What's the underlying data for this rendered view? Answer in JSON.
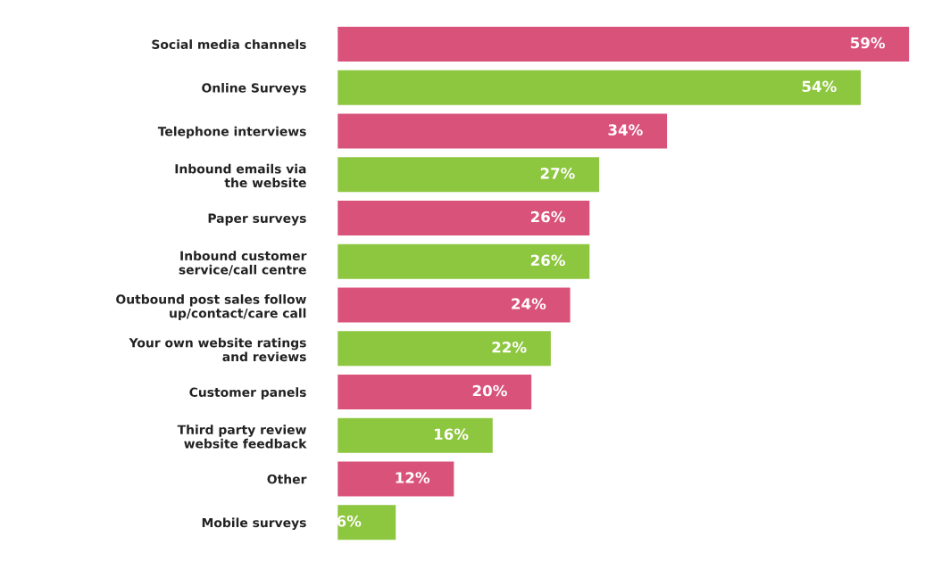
{
  "chart_data": {
    "type": "bar",
    "orientation": "horizontal",
    "categories": [
      "Social media channels",
      "Online Surveys",
      "Telephone interviews",
      "Inbound emails via\nthe website",
      "Paper surveys",
      "Inbound customer\nservice/call centre",
      "Outbound post sales follow\nup/contact/care call",
      "Your own website ratings\nand reviews",
      "Customer panels",
      "Third party review\nwebsite feedback",
      "Other",
      "Mobile surveys"
    ],
    "values": [
      59,
      54,
      34,
      27,
      26,
      26,
      24,
      22,
      20,
      16,
      12,
      6
    ],
    "colors": [
      "#d9527a",
      "#8dc63f",
      "#d9527a",
      "#8dc63f",
      "#d9527a",
      "#8dc63f",
      "#d9527a",
      "#8dc63f",
      "#d9527a",
      "#8dc63f",
      "#d9527a",
      "#8dc63f"
    ],
    "value_labels": [
      "59%",
      "54%",
      "34%",
      "27%",
      "26%",
      "26%",
      "24%",
      "22%",
      "20%",
      "16%",
      "12%",
      "6%"
    ],
    "xlim": [
      0,
      59
    ],
    "grid": false,
    "legend": false
  }
}
